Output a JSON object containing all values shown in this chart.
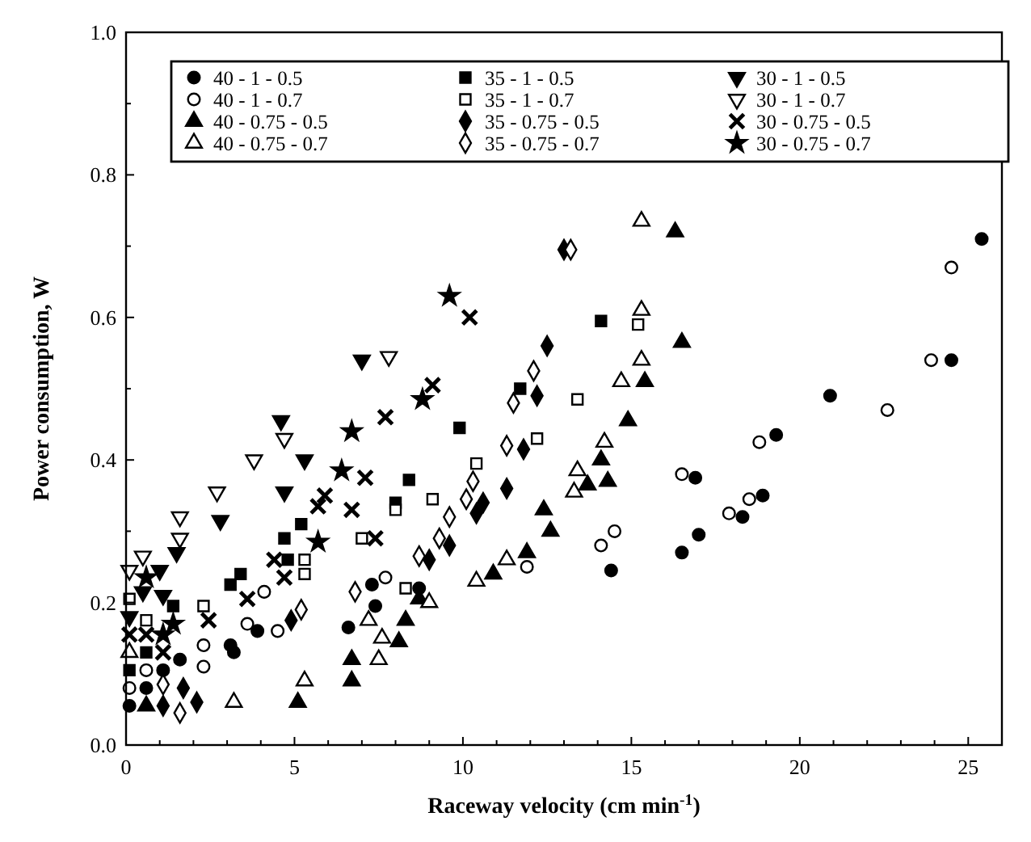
{
  "chart_data": {
    "type": "scatter",
    "xlabel": "Raceway velocity (cm min$^{-1}$)",
    "ylabel": "Power consumption, W",
    "xlim": [
      0,
      26
    ],
    "xticks": [
      0,
      5,
      10,
      15,
      20,
      25
    ],
    "ylim": [
      0,
      1.0
    ],
    "yticks": [
      {
        "value": 0,
        "label": "0.0"
      },
      {
        "value": 0.2,
        "label": "0.2"
      },
      {
        "value": 0.4,
        "label": "0.4"
      },
      {
        "value": 0.6,
        "label": "0.6"
      },
      {
        "value": 0.8,
        "label": "0.8"
      },
      {
        "value": 1.0,
        "label": "1.0"
      }
    ],
    "grid": false,
    "legend": "top",
    "series": [
      {
        "name": "40 - 1 - 0.5",
        "color": "#000000",
        "marker": "circle",
        "x": [
          0.1,
          0.6,
          1.1,
          1.6,
          3.1,
          3.2,
          3.9,
          6.6,
          7.3,
          7.4,
          8.7,
          14.4,
          16.5,
          17.0,
          18.3,
          18.9,
          16.9,
          19.3,
          20.9,
          24.5,
          25.4
        ],
        "values": [
          0.055,
          0.08,
          0.105,
          0.12,
          0.14,
          0.13,
          0.16,
          0.165,
          0.225,
          0.195,
          0.22,
          0.245,
          0.27,
          0.295,
          0.32,
          0.35,
          0.375,
          0.435,
          0.49,
          0.54,
          0.71
        ]
      },
      {
        "name": "35 - 1 - 0.5",
        "color": "#000000",
        "marker": "square",
        "x": [
          0.1,
          0.6,
          1.4,
          3.1,
          3.4,
          4.8,
          4.7,
          5.2,
          8.0,
          8.4,
          9.9,
          11.7,
          14.1
        ],
        "values": [
          0.105,
          0.13,
          0.195,
          0.225,
          0.24,
          0.26,
          0.29,
          0.31,
          0.34,
          0.372,
          0.445,
          0.5,
          0.595
        ]
      },
      {
        "name": "30 - 1 - 0.5",
        "color": "#000000",
        "marker": "triangle-down",
        "x": [
          0.1,
          0.5,
          1.1,
          1.0,
          1.5,
          2.8,
          4.7,
          5.3,
          4.6,
          7.0
        ],
        "values": [
          0.18,
          0.215,
          0.21,
          0.245,
          0.27,
          0.315,
          0.355,
          0.4,
          0.455,
          0.54
        ]
      },
      {
        "name": "40 - 1 - 0.7",
        "color": "#ffffff",
        "marker": "circle",
        "x": [
          0.1,
          0.6,
          2.3,
          2.3,
          3.6,
          4.1,
          4.5,
          7.7,
          11.9,
          14.1,
          14.5,
          16.5,
          17.9,
          18.5,
          18.8,
          22.6,
          23.9,
          24.5
        ],
        "values": [
          0.08,
          0.105,
          0.11,
          0.14,
          0.17,
          0.215,
          0.16,
          0.235,
          0.25,
          0.28,
          0.3,
          0.38,
          0.325,
          0.345,
          0.425,
          0.47,
          0.54,
          0.67
        ]
      },
      {
        "name": "35 - 1 - 0.7",
        "color": "#ffffff",
        "marker": "square",
        "x": [
          0.6,
          0.1,
          2.3,
          5.3,
          5.3,
          7.0,
          8.0,
          8.3,
          9.1,
          10.4,
          12.2,
          13.4,
          15.2
        ],
        "values": [
          0.175,
          0.205,
          0.195,
          0.24,
          0.26,
          0.29,
          0.33,
          0.22,
          0.345,
          0.395,
          0.43,
          0.485,
          0.59
        ]
      },
      {
        "name": "30 - 1 - 0.7",
        "color": "#ffffff",
        "marker": "triangle-down",
        "x": [
          0.1,
          0.5,
          1.6,
          1.6,
          2.7,
          3.8,
          4.7,
          7.8
        ],
        "values": [
          0.245,
          0.265,
          0.29,
          0.32,
          0.355,
          0.4,
          0.43,
          0.545
        ]
      },
      {
        "name": "40 - 0.75 - 0.5",
        "color": "#000000",
        "marker": "triangle",
        "x": [
          0.6,
          5.1,
          6.7,
          6.7,
          8.1,
          8.3,
          8.7,
          10.9,
          11.9,
          12.6,
          12.4,
          13.7,
          14.3,
          14.1,
          14.9,
          15.4,
          16.5,
          16.3
        ],
        "values": [
          0.055,
          0.06,
          0.09,
          0.12,
          0.145,
          0.175,
          0.205,
          0.24,
          0.27,
          0.3,
          0.33,
          0.365,
          0.37,
          0.4,
          0.455,
          0.51,
          0.565,
          0.72
        ]
      },
      {
        "name": "35 - 0.75 - 0.5",
        "color": "#000000",
        "marker": "diamond",
        "x": [
          1.1,
          2.1,
          1.7,
          4.9,
          9.0,
          9.6,
          10.4,
          10.6,
          11.3,
          11.8,
          12.2,
          12.5,
          13.0
        ],
        "values": [
          0.055,
          0.06,
          0.08,
          0.175,
          0.26,
          0.28,
          0.325,
          0.34,
          0.36,
          0.415,
          0.49,
          0.56,
          0.695
        ]
      },
      {
        "name": "30 - 0.75 - 0.5",
        "color": "#000000",
        "marker": "cross",
        "x": [
          1.1,
          0.1,
          0.6,
          2.45,
          3.6,
          4.4,
          4.7,
          5.7,
          5.9,
          6.7,
          7.1,
          7.4,
          7.7,
          9.1,
          10.2
        ],
        "values": [
          0.13,
          0.155,
          0.155,
          0.175,
          0.205,
          0.26,
          0.235,
          0.335,
          0.35,
          0.33,
          0.375,
          0.29,
          0.46,
          0.505,
          0.6
        ]
      },
      {
        "name": "40 - 0.75 - 0.7",
        "color": "#ffffff",
        "marker": "triangle",
        "x": [
          0.1,
          3.2,
          5.3,
          7.2,
          7.5,
          7.6,
          9.0,
          10.4,
          11.3,
          13.3,
          13.4,
          14.2,
          14.7,
          15.3,
          15.3,
          15.3
        ],
        "values": [
          0.13,
          0.06,
          0.09,
          0.175,
          0.12,
          0.15,
          0.2,
          0.23,
          0.26,
          0.355,
          0.385,
          0.425,
          0.51,
          0.54,
          0.61,
          0.735
        ]
      },
      {
        "name": "35 - 0.75 - 0.7",
        "color": "#ffffff",
        "marker": "diamond",
        "x": [
          1.6,
          1.1,
          5.2,
          6.8,
          8.7,
          9.3,
          9.6,
          10.1,
          10.3,
          11.3,
          11.5,
          12.1,
          13.2
        ],
        "values": [
          0.045,
          0.085,
          0.19,
          0.215,
          0.265,
          0.29,
          0.32,
          0.345,
          0.37,
          0.42,
          0.48,
          0.525,
          0.695
        ]
      },
      {
        "name": "30 - 0.75 - 0.7",
        "color": "#000000",
        "marker": "star",
        "x": [
          1.1,
          0.6,
          1.4,
          5.7,
          6.4,
          6.7,
          8.8,
          9.6
        ],
        "values": [
          0.155,
          0.235,
          0.17,
          0.285,
          0.385,
          0.44,
          0.485,
          0.63
        ]
      }
    ]
  }
}
